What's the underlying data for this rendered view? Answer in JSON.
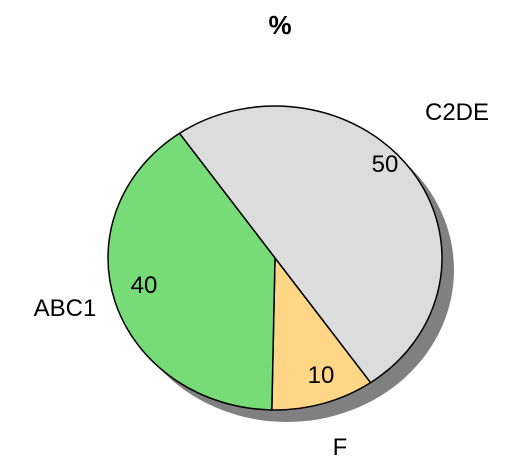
{
  "chart_data": {
    "type": "pie",
    "title": "%",
    "categories": [
      "C2DE",
      "F",
      "ABC1"
    ],
    "values": [
      50,
      10,
      40
    ],
    "colors": [
      "#dcdcdc",
      "#ffd686",
      "#77db77"
    ],
    "shadow_color": "#808080",
    "outline_color": "#000000",
    "start": "top-left, clockwise",
    "shadow": true,
    "legend": "none"
  }
}
